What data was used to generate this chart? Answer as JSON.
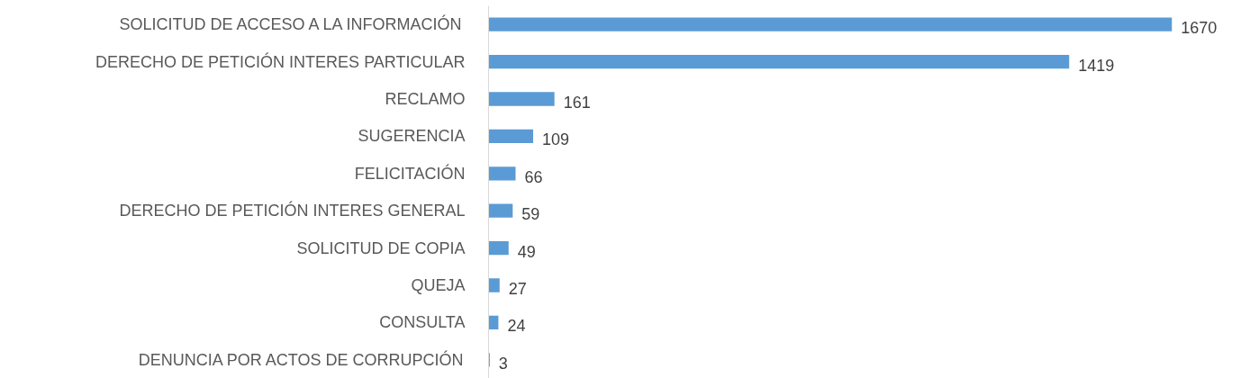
{
  "chart_data": {
    "type": "bar",
    "orientation": "horizontal",
    "categories": [
      "SOLICITUD DE ACCESO A LA INFORMACIÓN",
      "DERECHO DE PETICIÓN INTERES PARTICULAR",
      "RECLAMO",
      "SUGERENCIA",
      "FELICITACIÓN",
      "DERECHO DE PETICIÓN INTERES GENERAL",
      "SOLICITUD DE COPIA",
      "QUEJA",
      "CONSULTA",
      "DENUNCIA POR ACTOS DE CORRUPCIÓN"
    ],
    "values": [
      1670,
      1419,
      161,
      109,
      66,
      59,
      49,
      27,
      24,
      3
    ],
    "color": "#5b9bd5",
    "data_labels": true,
    "tick_labels": "y",
    "grid": false
  }
}
